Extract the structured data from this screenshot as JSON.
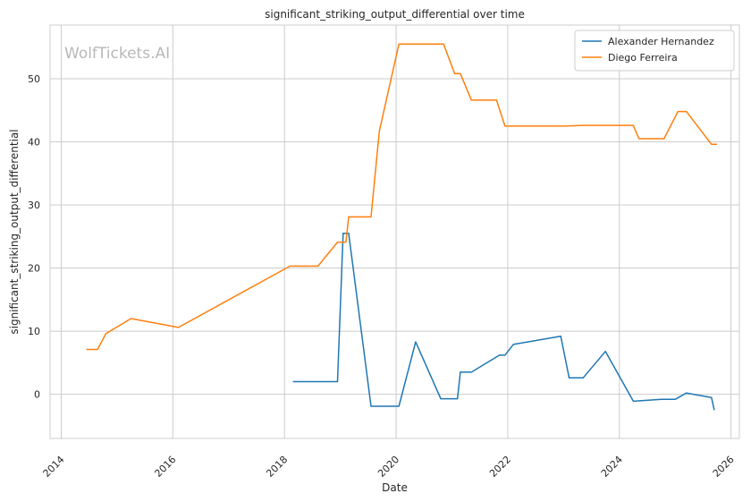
{
  "chart_data": {
    "type": "line",
    "title": "significant_striking_output_differential over time",
    "xlabel": "Date",
    "ylabel": "significant_striking_output_differential",
    "watermark": "WolfTickets.AI",
    "xlim": [
      2013.8,
      2026.15
    ],
    "ylim": [
      -7,
      58.5
    ],
    "x_ticks": [
      2014,
      2016,
      2018,
      2020,
      2022,
      2024,
      2026
    ],
    "x_tick_labels": [
      "2014",
      "2016",
      "2018",
      "2020",
      "2022",
      "2024",
      "2026"
    ],
    "y_ticks": [
      0,
      10,
      20,
      30,
      40,
      50
    ],
    "y_tick_labels": [
      "0",
      "10",
      "20",
      "30",
      "40",
      "50"
    ],
    "grid": true,
    "legend_position": "top-right",
    "colors": {
      "Alexander Hernandez": "#1f77b4",
      "Diego Ferreira": "#ff7f0e",
      "grid": "#cccccc",
      "axis": "#cccccc"
    },
    "series": [
      {
        "name": "Alexander Hernandez",
        "points": [
          [
            2018.15,
            2.0
          ],
          [
            2018.95,
            2.0
          ],
          [
            2019.05,
            25.5
          ],
          [
            2019.15,
            25.5
          ],
          [
            2019.55,
            -1.9
          ],
          [
            2020.05,
            -1.9
          ],
          [
            2020.35,
            8.3
          ],
          [
            2020.8,
            -0.7
          ],
          [
            2021.1,
            -0.7
          ],
          [
            2021.15,
            3.5
          ],
          [
            2021.35,
            3.5
          ],
          [
            2021.85,
            6.2
          ],
          [
            2021.95,
            6.2
          ],
          [
            2022.1,
            7.9
          ],
          [
            2022.95,
            9.2
          ],
          [
            2023.1,
            2.6
          ],
          [
            2023.35,
            2.6
          ],
          [
            2023.75,
            6.8
          ],
          [
            2024.25,
            -1.1
          ],
          [
            2024.75,
            -0.8
          ],
          [
            2025.0,
            -0.8
          ],
          [
            2025.2,
            0.2
          ],
          [
            2025.65,
            -0.5
          ],
          [
            2025.7,
            -2.5
          ]
        ]
      },
      {
        "name": "Diego Ferreira",
        "points": [
          [
            2014.45,
            7.1
          ],
          [
            2014.65,
            7.1
          ],
          [
            2014.8,
            9.6
          ],
          [
            2015.25,
            12.0
          ],
          [
            2016.1,
            10.6
          ],
          [
            2018.1,
            20.3
          ],
          [
            2018.6,
            20.3
          ],
          [
            2018.95,
            24.1
          ],
          [
            2019.1,
            24.1
          ],
          [
            2019.15,
            28.1
          ],
          [
            2019.55,
            28.1
          ],
          [
            2019.7,
            41.7
          ],
          [
            2020.05,
            55.5
          ],
          [
            2020.85,
            55.5
          ],
          [
            2021.05,
            50.8
          ],
          [
            2021.15,
            50.8
          ],
          [
            2021.35,
            46.6
          ],
          [
            2021.8,
            46.6
          ],
          [
            2021.95,
            42.5
          ],
          [
            2023.0,
            42.5
          ],
          [
            2023.35,
            42.6
          ],
          [
            2024.25,
            42.6
          ],
          [
            2024.35,
            40.5
          ],
          [
            2024.8,
            40.5
          ],
          [
            2025.05,
            44.8
          ],
          [
            2025.2,
            44.8
          ],
          [
            2025.65,
            39.6
          ],
          [
            2025.75,
            39.6
          ]
        ]
      }
    ]
  }
}
